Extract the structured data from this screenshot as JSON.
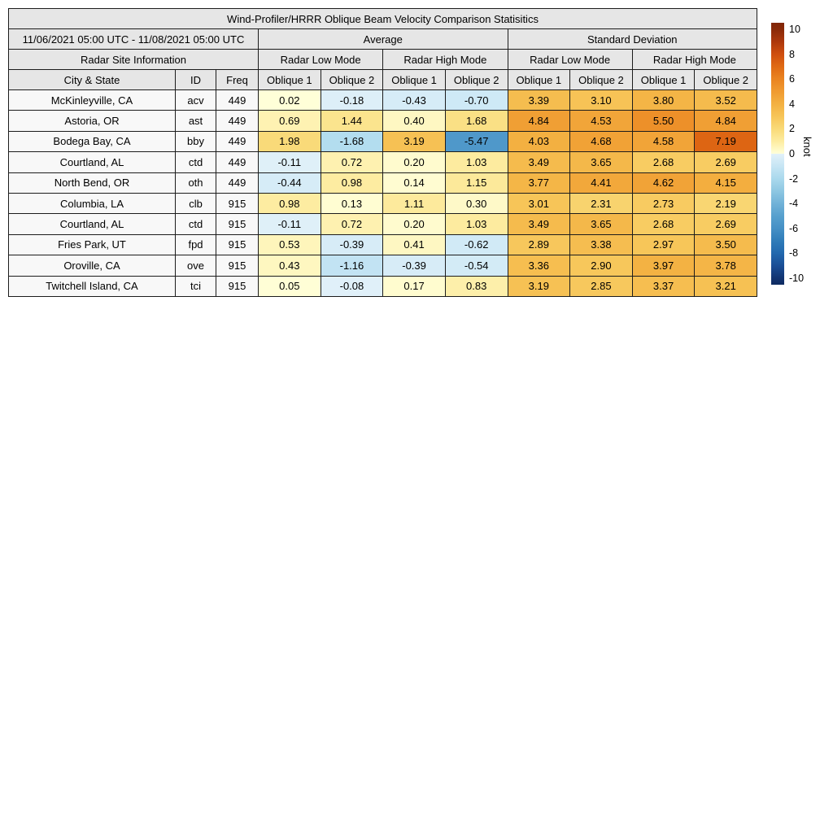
{
  "table": {
    "title": "Wind-Profiler/HRRR Oblique Beam Velocity Comparison Statisitics",
    "date_range": "11/06/2021 05:00 UTC - 11/08/2021 05:00 UTC",
    "group_headers": {
      "average": "Average",
      "std": "Standard Deviation"
    },
    "site_info_header": "Radar Site Information",
    "mode_headers": {
      "low": "Radar Low Mode",
      "high": "Radar High Mode"
    },
    "col_headers": {
      "city": "City & State",
      "id": "ID",
      "freq": "Freq",
      "oblique1": "Oblique 1",
      "oblique2": "Oblique 2"
    }
  },
  "colorbar": {
    "label": "knot",
    "tick_values": [
      10,
      8,
      6,
      4,
      2,
      0,
      -2,
      -4,
      -6,
      -8,
      -10
    ],
    "range": [
      -10,
      10
    ],
    "end_top": "#802607",
    "end_bottom": "#0e2b61",
    "stops_positive": [
      "#ffffd9",
      "#fdeca0",
      "#f9da78",
      "#f7c558",
      "#f3b142",
      "#f09b31",
      "#ea8421",
      "#e06a14",
      "#cf4f10",
      "#ad380c",
      "#8a2a08"
    ],
    "stops_negative": [
      "#e2f1f9",
      "#c6e5f4",
      "#aad9ed",
      "#8ec7e2",
      "#71b2d8",
      "#57a0ce",
      "#4590c5",
      "#2f7cb9",
      "#2268ae",
      "#1a4e96",
      "#123471"
    ]
  },
  "colors": {
    "header_bg": "#e6e6e6",
    "label_cell_bg": "#f8f8f8",
    "border": "#1c1c1c",
    "background": "#ffffff"
  },
  "chart_data": {
    "type": "heatmap",
    "title": "Wind-Profiler/HRRR Oblique Beam Velocity Comparison Statisitics",
    "date_range": "11/06/2021 05:00 UTC - 11/08/2021 05:00 UTC",
    "unit": "knot",
    "colorbar_range": [
      -10,
      10
    ],
    "colorbar_ticks": [
      10,
      8,
      6,
      4,
      2,
      0,
      -2,
      -4,
      -6,
      -8,
      -10
    ],
    "column_groups": [
      {
        "name": "Average",
        "modes": [
          "Radar Low Mode",
          "Radar High Mode"
        ]
      },
      {
        "name": "Standard Deviation",
        "modes": [
          "Radar Low Mode",
          "Radar High Mode"
        ]
      }
    ],
    "value_columns": [
      "Average / Radar Low Mode / Oblique 1",
      "Average / Radar Low Mode / Oblique 2",
      "Average / Radar High Mode / Oblique 1",
      "Average / Radar High Mode / Oblique 2",
      "Standard Deviation / Radar Low Mode / Oblique 1",
      "Standard Deviation / Radar Low Mode / Oblique 2",
      "Standard Deviation / Radar High Mode / Oblique 1",
      "Standard Deviation / Radar High Mode / Oblique 2"
    ],
    "rows": [
      {
        "city": "McKinleyville, CA",
        "id": "acv",
        "freq": 449,
        "values": [
          0.02,
          -0.18,
          -0.43,
          -0.7,
          3.39,
          3.1,
          3.8,
          3.52
        ]
      },
      {
        "city": "Astoria, OR",
        "id": "ast",
        "freq": 449,
        "values": [
          0.69,
          1.44,
          0.4,
          1.68,
          4.84,
          4.53,
          5.5,
          4.84
        ]
      },
      {
        "city": "Bodega Bay, CA",
        "id": "bby",
        "freq": 449,
        "values": [
          1.98,
          -1.68,
          3.19,
          -5.47,
          4.03,
          4.68,
          4.58,
          7.19
        ]
      },
      {
        "city": "Courtland, AL",
        "id": "ctd",
        "freq": 449,
        "values": [
          -0.11,
          0.72,
          0.2,
          1.03,
          3.49,
          3.65,
          2.68,
          2.69
        ]
      },
      {
        "city": "North Bend, OR",
        "id": "oth",
        "freq": 449,
        "values": [
          -0.44,
          0.98,
          0.14,
          1.15,
          3.77,
          4.41,
          4.62,
          4.15
        ]
      },
      {
        "city": "Columbia, LA",
        "id": "clb",
        "freq": 915,
        "values": [
          0.98,
          0.13,
          1.11,
          0.3,
          3.01,
          2.31,
          2.73,
          2.19
        ]
      },
      {
        "city": "Courtland, AL",
        "id": "ctd",
        "freq": 915,
        "values": [
          -0.11,
          0.72,
          0.2,
          1.03,
          3.49,
          3.65,
          2.68,
          2.69
        ]
      },
      {
        "city": "Fries Park, UT",
        "id": "fpd",
        "freq": 915,
        "values": [
          0.53,
          -0.39,
          0.41,
          -0.62,
          2.89,
          3.38,
          2.97,
          3.5
        ]
      },
      {
        "city": "Oroville, CA",
        "id": "ove",
        "freq": 915,
        "values": [
          0.43,
          -1.16,
          -0.39,
          -0.54,
          3.36,
          2.9,
          3.97,
          3.78
        ]
      },
      {
        "city": "Twitchell Island, CA",
        "id": "tci",
        "freq": 915,
        "values": [
          0.05,
          -0.08,
          0.17,
          0.83,
          3.19,
          2.85,
          3.37,
          3.21
        ]
      }
    ]
  }
}
